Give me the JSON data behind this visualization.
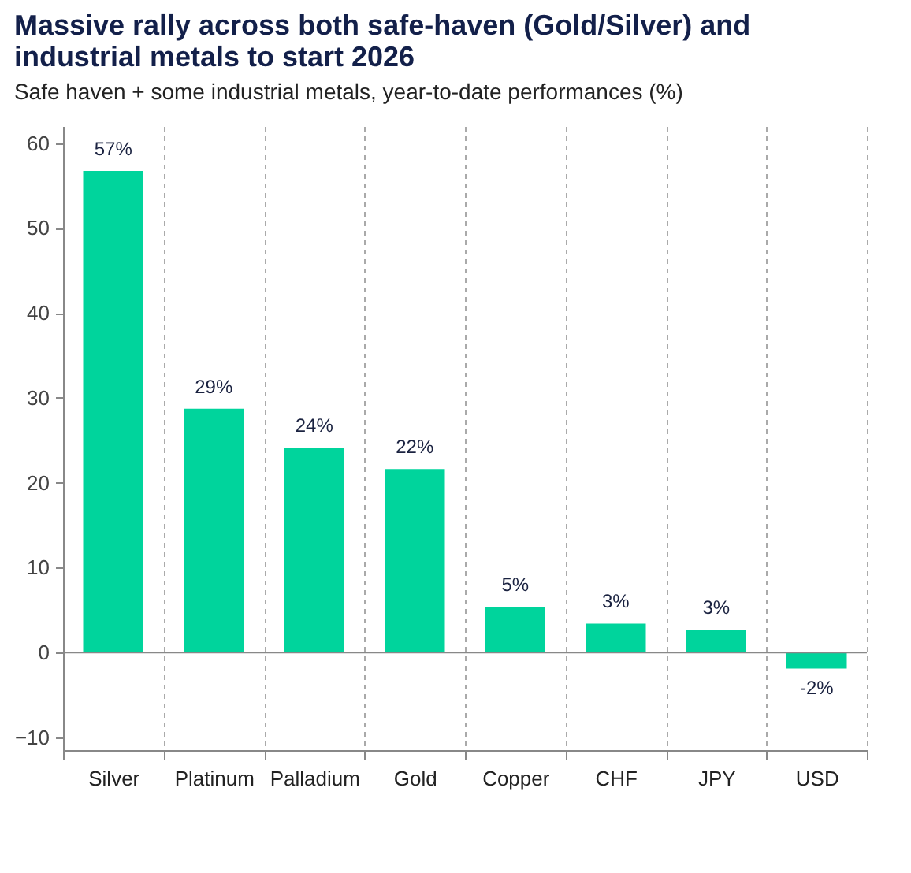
{
  "chart_data": {
    "type": "bar",
    "title": "Massive rally across both safe-haven (Gold/Silver) and industrial metals to start 2026",
    "subtitle": "Safe haven + some industrial metals, year-to-date performances (%)",
    "categories": [
      "Silver",
      "Platinum",
      "Palladium",
      "Gold",
      "Copper",
      "CHF",
      "JPY",
      "USD"
    ],
    "values": [
      56.7,
      28.7,
      24.1,
      21.6,
      5.4,
      3.4,
      2.7,
      -1.9
    ],
    "value_labels": [
      "57%",
      "29%",
      "24%",
      "22%",
      "5%",
      "3%",
      "3%",
      "-2%"
    ],
    "color": "#00d49c",
    "ylim": [
      -11.5,
      62
    ],
    "yticks": [
      -10,
      0,
      10,
      20,
      30,
      40,
      50,
      60
    ],
    "grid": "x",
    "ref_lines": [
      {
        "axis": "y",
        "value": 0,
        "color": "#888888"
      }
    ]
  }
}
